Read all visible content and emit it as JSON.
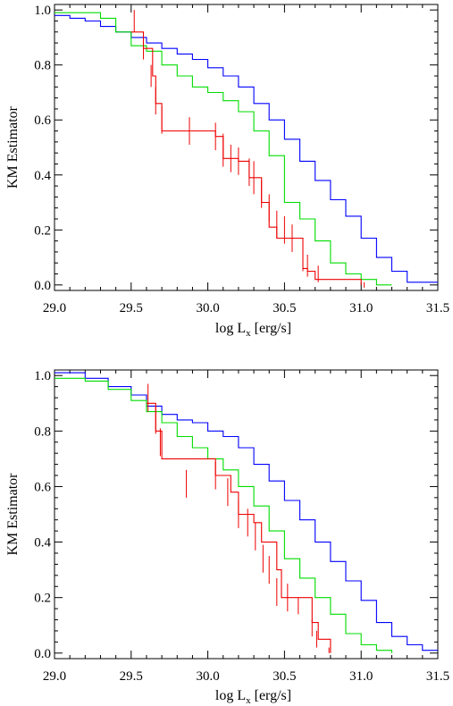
{
  "chart_data": [
    {
      "type": "line",
      "xlabel": "log L",
      "xlabel_sub": "x",
      "xlabel_unit": "[erg/s]",
      "ylabel": "KM Estimator",
      "xlim": [
        29.0,
        31.5
      ],
      "ylim": [
        -0.02,
        1.02
      ],
      "xticks": [
        "29.0",
        "29.5",
        "30.0",
        "30.5",
        "31.0",
        "31.5"
      ],
      "yticks": [
        "0.0",
        "0.2",
        "0.4",
        "0.6",
        "0.8",
        "1.0"
      ],
      "grid": false,
      "legend": "none",
      "series": [
        {
          "color": "#0000ff",
          "step": true,
          "points": [
            [
              29.0,
              0.98
            ],
            [
              29.1,
              0.97
            ],
            [
              29.2,
              0.96
            ],
            [
              29.3,
              0.94
            ],
            [
              29.4,
              0.92
            ],
            [
              29.5,
              0.9
            ],
            [
              29.6,
              0.88
            ],
            [
              29.7,
              0.86
            ],
            [
              29.8,
              0.84
            ],
            [
              29.9,
              0.82
            ],
            [
              30.0,
              0.79
            ],
            [
              30.1,
              0.76
            ],
            [
              30.2,
              0.72
            ],
            [
              30.3,
              0.66
            ],
            [
              30.4,
              0.6
            ],
            [
              30.5,
              0.53
            ],
            [
              30.6,
              0.45
            ],
            [
              30.7,
              0.38
            ],
            [
              30.8,
              0.31
            ],
            [
              30.9,
              0.25
            ],
            [
              31.0,
              0.17
            ],
            [
              31.1,
              0.1
            ],
            [
              31.2,
              0.05
            ],
            [
              31.3,
              0.01
            ],
            [
              31.5,
              0.01
            ]
          ]
        },
        {
          "color": "#00dd00",
          "step": true,
          "points": [
            [
              29.0,
              0.99
            ],
            [
              29.2,
              0.99
            ],
            [
              29.3,
              0.97
            ],
            [
              29.4,
              0.92
            ],
            [
              29.5,
              0.87
            ],
            [
              29.6,
              0.85
            ],
            [
              29.7,
              0.8
            ],
            [
              29.8,
              0.76
            ],
            [
              29.9,
              0.72
            ],
            [
              30.0,
              0.7
            ],
            [
              30.1,
              0.67
            ],
            [
              30.2,
              0.63
            ],
            [
              30.3,
              0.56
            ],
            [
              30.4,
              0.47
            ],
            [
              30.5,
              0.3
            ],
            [
              30.6,
              0.24
            ],
            [
              30.7,
              0.16
            ],
            [
              30.8,
              0.08
            ],
            [
              30.9,
              0.04
            ],
            [
              31.0,
              0.02
            ],
            [
              31.1,
              0.0
            ],
            [
              31.2,
              0.0
            ]
          ]
        },
        {
          "color": "#ee0000",
          "step": true,
          "points": [
            [
              29.5,
              0.92
            ],
            [
              29.58,
              0.86
            ],
            [
              29.64,
              0.76
            ],
            [
              29.66,
              0.66
            ],
            [
              29.7,
              0.56
            ],
            [
              29.9,
              0.56
            ],
            [
              30.05,
              0.54
            ],
            [
              30.1,
              0.46
            ],
            [
              30.2,
              0.45
            ],
            [
              30.27,
              0.39
            ],
            [
              30.35,
              0.3
            ],
            [
              30.4,
              0.21
            ],
            [
              30.45,
              0.17
            ],
            [
              30.55,
              0.17
            ],
            [
              30.62,
              0.06
            ],
            [
              30.65,
              0.05
            ],
            [
              30.7,
              0.02
            ],
            [
              31.0,
              0.0
            ]
          ],
          "errbar_x": [
            29.52,
            29.58,
            29.63,
            29.66,
            29.7,
            29.88,
            30.05,
            30.1,
            30.15,
            30.2,
            30.27,
            30.3,
            30.35,
            30.4,
            30.45,
            30.5,
            30.55,
            30.62,
            30.65,
            30.72,
            31.02
          ],
          "errbar_y": [
            0.96,
            0.86,
            0.76,
            0.67,
            0.6,
            0.56,
            0.54,
            0.49,
            0.46,
            0.45,
            0.41,
            0.39,
            0.33,
            0.28,
            0.22,
            0.2,
            0.17,
            0.1,
            0.07,
            0.04,
            0.0
          ],
          "errbar_h": [
            0.08,
            0.08,
            0.08,
            0.1,
            0.1,
            0.1,
            0.1,
            0.12,
            0.1,
            0.1,
            0.1,
            0.12,
            0.1,
            0.1,
            0.1,
            0.1,
            0.1,
            0.1,
            0.08,
            0.06,
            0.02
          ]
        }
      ]
    },
    {
      "type": "line",
      "xlabel": "log L",
      "xlabel_sub": "x",
      "xlabel_unit": "[erg/s]",
      "ylabel": "KM Estimator",
      "xlim": [
        29.0,
        31.5
      ],
      "ylim": [
        -0.02,
        1.02
      ],
      "xticks": [
        "29.0",
        "29.5",
        "30.0",
        "30.5",
        "31.0",
        "31.5"
      ],
      "yticks": [
        "0.0",
        "0.2",
        "0.4",
        "0.6",
        "0.8",
        "1.0"
      ],
      "grid": false,
      "legend": "none",
      "series": [
        {
          "color": "#0000ff",
          "step": true,
          "points": [
            [
              29.0,
              1.01
            ],
            [
              29.2,
              0.99
            ],
            [
              29.35,
              0.96
            ],
            [
              29.5,
              0.93
            ],
            [
              29.6,
              0.89
            ],
            [
              29.7,
              0.86
            ],
            [
              29.8,
              0.84
            ],
            [
              29.9,
              0.83
            ],
            [
              30.0,
              0.8
            ],
            [
              30.1,
              0.78
            ],
            [
              30.2,
              0.74
            ],
            [
              30.3,
              0.68
            ],
            [
              30.4,
              0.62
            ],
            [
              30.5,
              0.55
            ],
            [
              30.6,
              0.48
            ],
            [
              30.7,
              0.4
            ],
            [
              30.8,
              0.33
            ],
            [
              30.9,
              0.26
            ],
            [
              31.0,
              0.19
            ],
            [
              31.1,
              0.11
            ],
            [
              31.2,
              0.06
            ],
            [
              31.3,
              0.03
            ],
            [
              31.4,
              0.01
            ],
            [
              31.5,
              0.01
            ]
          ]
        },
        {
          "color": "#00dd00",
          "step": true,
          "points": [
            [
              29.0,
              0.99
            ],
            [
              29.2,
              0.98
            ],
            [
              29.35,
              0.95
            ],
            [
              29.5,
              0.91
            ],
            [
              29.6,
              0.87
            ],
            [
              29.7,
              0.83
            ],
            [
              29.8,
              0.78
            ],
            [
              29.9,
              0.74
            ],
            [
              30.0,
              0.7
            ],
            [
              30.1,
              0.66
            ],
            [
              30.2,
              0.6
            ],
            [
              30.3,
              0.53
            ],
            [
              30.4,
              0.44
            ],
            [
              30.5,
              0.34
            ],
            [
              30.6,
              0.27
            ],
            [
              30.7,
              0.2
            ],
            [
              30.8,
              0.14
            ],
            [
              30.9,
              0.07
            ],
            [
              31.0,
              0.03
            ],
            [
              31.1,
              0.01
            ],
            [
              31.2,
              0.0
            ]
          ]
        },
        {
          "color": "#ee0000",
          "step": true,
          "points": [
            [
              29.6,
              0.9
            ],
            [
              29.66,
              0.8
            ],
            [
              29.7,
              0.7
            ],
            [
              29.9,
              0.7
            ],
            [
              30.05,
              0.64
            ],
            [
              30.15,
              0.58
            ],
            [
              30.2,
              0.5
            ],
            [
              30.3,
              0.47
            ],
            [
              30.35,
              0.4
            ],
            [
              30.45,
              0.3
            ],
            [
              30.48,
              0.2
            ],
            [
              30.62,
              0.2
            ],
            [
              30.68,
              0.11
            ],
            [
              30.72,
              0.05
            ],
            [
              30.8,
              0.0
            ]
          ],
          "errbar_x": [
            29.61,
            29.66,
            29.69,
            29.86,
            30.05,
            30.13,
            30.2,
            30.26,
            30.31,
            30.36,
            30.4,
            30.45,
            30.52,
            30.59,
            30.68,
            30.71,
            30.79
          ],
          "errbar_y": [
            0.92,
            0.84,
            0.76,
            0.61,
            0.64,
            0.58,
            0.5,
            0.47,
            0.42,
            0.34,
            0.3,
            0.22,
            0.2,
            0.17,
            0.09,
            0.05,
            0.01
          ],
          "errbar_h": [
            0.1,
            0.1,
            0.1,
            0.1,
            0.1,
            0.1,
            0.1,
            0.1,
            0.1,
            0.1,
            0.1,
            0.1,
            0.1,
            0.06,
            0.06,
            0.06,
            0.02
          ]
        }
      ]
    }
  ]
}
